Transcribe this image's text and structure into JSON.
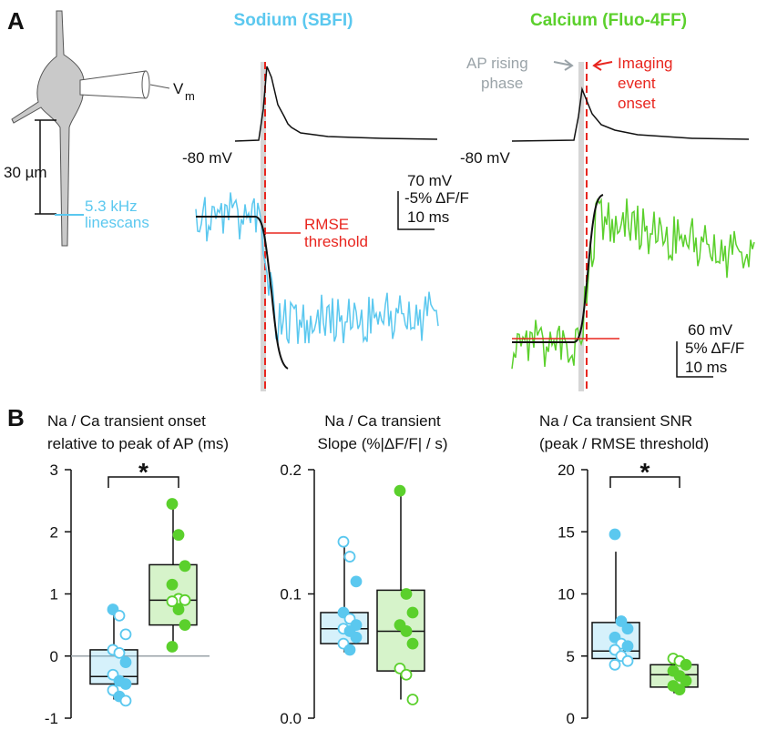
{
  "panel_a": {
    "label": "A",
    "sodium_title": "Sodium (SBFI)",
    "calcium_title": "Calcium (Fluo-4FF)",
    "vm": "V",
    "vm_sub": "m",
    "scale_um": "30 µm",
    "linescan_1": "5.3 kHz",
    "linescan_2": "linescans",
    "rest_na": "-80 mV",
    "rest_ca": "-80 mV",
    "na_scale": [
      "70 mV",
      "-5% ΔF/F",
      "10 ms"
    ],
    "ca_scale": [
      "60 mV",
      "5% ΔF/F",
      "10 ms"
    ],
    "rmse": [
      "RMSE",
      "threshold"
    ],
    "ap_rising": [
      "AP rising",
      "phase"
    ],
    "imaging": [
      "Imaging",
      "event",
      "onset"
    ]
  },
  "panel_b": {
    "label": "B"
  },
  "chart_data": [
    {
      "type": "box",
      "title": [
        "Na / Ca transient onset",
        "relative to peak of AP (ms)"
      ],
      "ylim": [
        -1,
        3
      ],
      "yticks": [
        -1,
        0,
        1,
        2,
        3
      ],
      "reference_line": 0,
      "significance": "*",
      "series": [
        {
          "color": "#5bc8ef",
          "whisker_low": -0.7,
          "q1": -0.45,
          "median": -0.33,
          "q3": 0.1,
          "whisker_high": 0.7,
          "points": [
            0.75,
            0.65,
            0.35,
            0.1,
            0.05,
            -0.1,
            -0.3,
            -0.4,
            -0.45,
            -0.55,
            -0.65,
            -0.72
          ],
          "hollow": [
            false,
            true,
            true,
            true,
            true,
            false,
            true,
            false,
            false,
            true,
            false,
            true
          ]
        },
        {
          "color": "#5bd02c",
          "whisker_low": 0.15,
          "q1": 0.5,
          "median": 0.9,
          "q3": 1.47,
          "whisker_high": 2.45,
          "points": [
            2.45,
            1.95,
            1.45,
            1.15,
            0.92,
            0.9,
            0.88,
            0.75,
            0.5,
            0.15
          ],
          "hollow": [
            false,
            false,
            false,
            false,
            true,
            true,
            true,
            false,
            false,
            false
          ]
        }
      ]
    },
    {
      "type": "box",
      "title": [
        "Na / Ca transient",
        "Slope (%|ΔF/F| / s)"
      ],
      "ylim": [
        0,
        0.2
      ],
      "yticks": [
        {
          "value": 0,
          "label": "0.0"
        },
        0.1,
        0.2
      ],
      "series": [
        {
          "color": "#5bc8ef",
          "whisker_low": 0.053,
          "q1": 0.06,
          "median": 0.072,
          "q3": 0.085,
          "whisker_high": 0.14,
          "points": [
            0.142,
            0.13,
            0.11,
            0.085,
            0.08,
            0.075,
            0.072,
            0.07,
            0.065,
            0.06,
            0.055
          ],
          "hollow": [
            true,
            true,
            false,
            false,
            true,
            false,
            true,
            false,
            false,
            true,
            false
          ]
        },
        {
          "color": "#5bd02c",
          "whisker_low": 0.015,
          "q1": 0.038,
          "median": 0.07,
          "q3": 0.103,
          "whisker_high": 0.183,
          "points": [
            0.183,
            0.1,
            0.085,
            0.075,
            0.07,
            0.06,
            0.04,
            0.035,
            0.015
          ],
          "hollow": [
            false,
            false,
            false,
            false,
            false,
            false,
            true,
            true,
            true
          ]
        }
      ]
    },
    {
      "type": "box",
      "title": [
        "Na / Ca transient SNR",
        "(peak / RMSE threshold)"
      ],
      "ylim": [
        0,
        20
      ],
      "yticks": [
        0,
        5,
        10,
        15,
        20
      ],
      "significance": "*",
      "series": [
        {
          "color": "#5bc8ef",
          "whisker_low": 4.3,
          "q1": 4.8,
          "median": 5.4,
          "q3": 7.7,
          "whisker_high": 13.4,
          "points": [
            14.8,
            7.8,
            7.2,
            6.5,
            6.0,
            5.8,
            5.5,
            5.0,
            4.6,
            4.3
          ],
          "hollow": [
            false,
            false,
            false,
            false,
            true,
            false,
            true,
            true,
            true,
            true
          ]
        },
        {
          "color": "#5bd02c",
          "whisker_low": 2.0,
          "q1": 2.5,
          "median": 3.5,
          "q3": 4.3,
          "whisker_high": 4.7,
          "points": [
            4.8,
            4.6,
            4.3,
            3.8,
            3.4,
            3.0,
            2.6,
            2.3
          ],
          "hollow": [
            true,
            true,
            false,
            false,
            false,
            false,
            false,
            false
          ]
        }
      ]
    }
  ]
}
